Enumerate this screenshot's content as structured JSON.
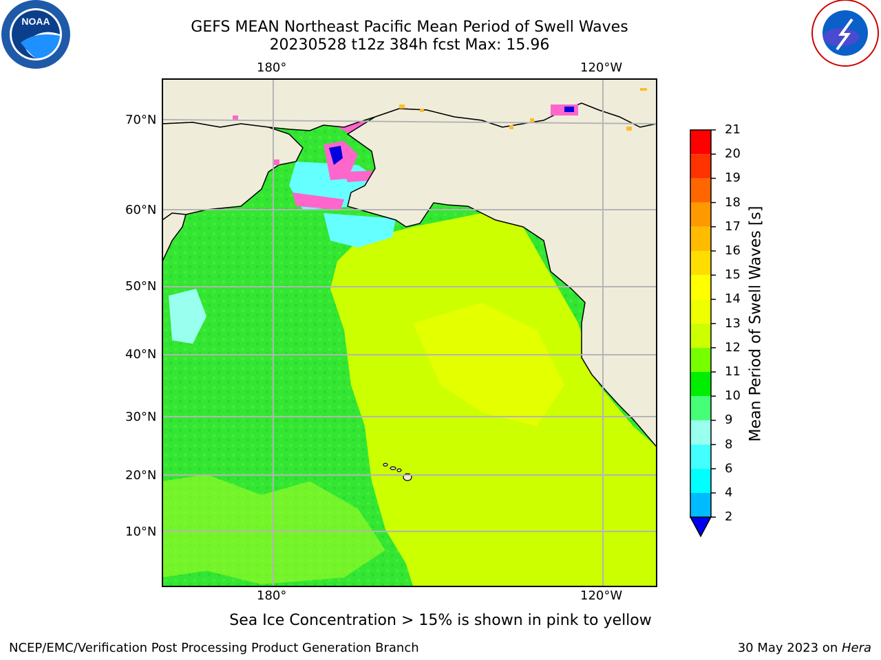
{
  "title": {
    "line1": "GEFS MEAN Northeast Pacific Mean Period of Swell Waves",
    "line2": "20230528 t12z 384h fcst   Max: 15.96"
  },
  "logos": {
    "left": "noara-logo",
    "right": "national-weather-service-logo"
  },
  "map": {
    "top_lon_labels": [
      "180°",
      "120°W"
    ],
    "bottom_lon_labels": [
      "180°",
      "120°W"
    ],
    "lat_labels": [
      "70°N",
      "60°N",
      "50°N",
      "40°N",
      "30°N",
      "20°N",
      "10°N"
    ],
    "colors": {
      "land": "#efedda",
      "ocean_green": "#33e633",
      "ocean_yellow": "#ccff00",
      "ice_pink": "#ff66cc",
      "grid": "#b4b4b4"
    }
  },
  "colorbar": {
    "title": "Mean Period of Swell Waves [s]",
    "ticks": [
      "21",
      "20",
      "19",
      "18",
      "17",
      "16",
      "15",
      "14",
      "13",
      "12",
      "11",
      "10",
      "9",
      "8",
      "6",
      "4",
      "2"
    ],
    "colors": [
      "#ff0000",
      "#ff3300",
      "#ff6600",
      "#ff9900",
      "#ffbb00",
      "#ffdd00",
      "#ffff00",
      "#eeff00",
      "#ccff00",
      "#77ff00",
      "#00ee00",
      "#44ff77",
      "#99ffee",
      "#44ffff",
      "#00ffff",
      "#00bbff",
      "#0066ff"
    ],
    "extend_color": "#0000ee"
  },
  "note": "Sea Ice Concentration > 15% is shown in pink to yellow",
  "footer": {
    "left": "NCEP/EMC/Verification Post Processing Product Generation Branch",
    "right_date": "30 May 2023 on ",
    "right_machine": "Hera"
  }
}
